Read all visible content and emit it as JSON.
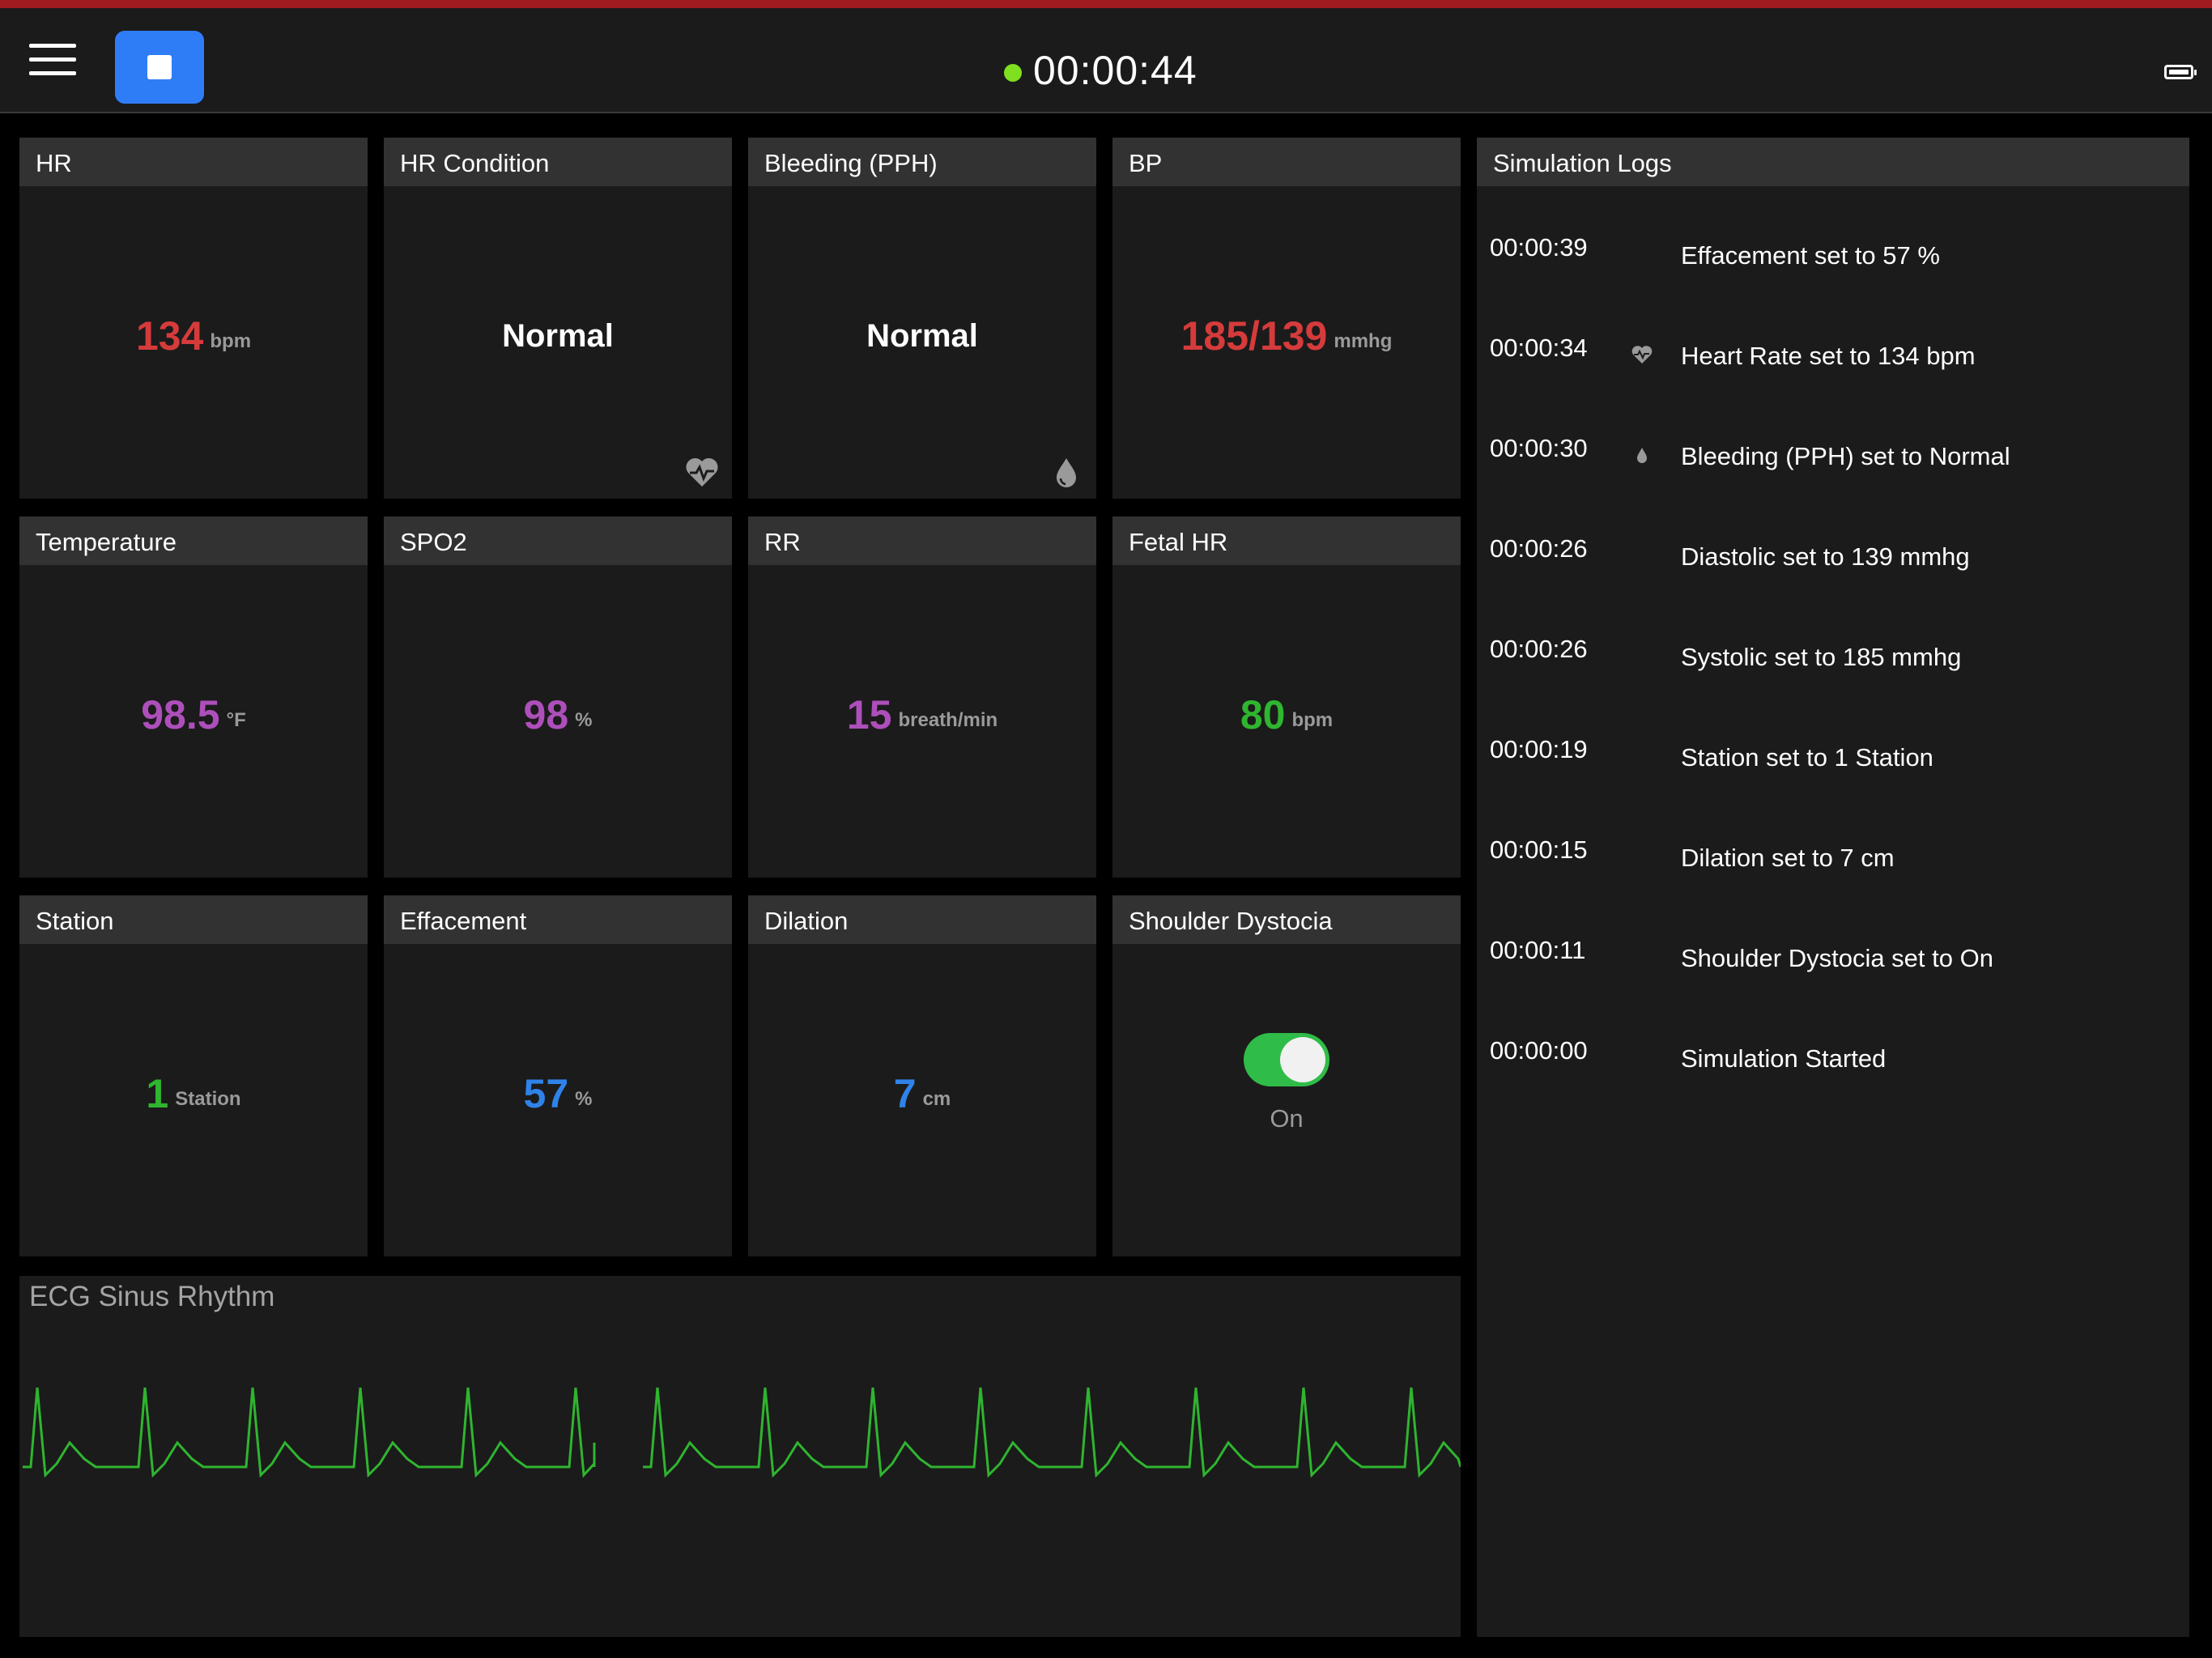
{
  "header": {
    "menu_icon": "hamburger-menu-icon",
    "stop_icon": "stop-icon",
    "status_dot_color": "#7ee01e",
    "timer": "00:00:44",
    "battery_icon": "battery-icon",
    "accent_bar_color": "#a01b20"
  },
  "cards": {
    "hr": {
      "title": "HR",
      "value": "134",
      "unit": "bpm",
      "color": "#d63b3b"
    },
    "hr_condition": {
      "title": "HR Condition",
      "value": "Normal",
      "icon": "heart-pulse-icon"
    },
    "bleeding": {
      "title": "Bleeding (PPH)",
      "value": "Normal",
      "icon": "blood-drop-icon"
    },
    "bp": {
      "title": "BP",
      "value": "185/139",
      "unit": "mmhg",
      "color": "#d63b3b"
    },
    "temperature": {
      "title": "Temperature",
      "value": "98.5",
      "unit": "°F",
      "color": "#ad4fba"
    },
    "spo2": {
      "title": "SPO2",
      "value": "98",
      "unit": "%",
      "color": "#ad4fba"
    },
    "rr": {
      "title": "RR",
      "value": "15",
      "unit": "breath/min",
      "color": "#ad4fba"
    },
    "fetal_hr": {
      "title": "Fetal HR",
      "value": "80",
      "unit": "bpm",
      "color": "#2fb52f"
    },
    "station": {
      "title": "Station",
      "value": "1",
      "unit": "Station",
      "color": "#2fb52f"
    },
    "effacement": {
      "title": "Effacement",
      "value": "57",
      "unit": "%",
      "color": "#2f83e8"
    },
    "dilation": {
      "title": "Dilation",
      "value": "7",
      "unit": "cm",
      "color": "#2f83e8"
    },
    "shoulder_dystocia": {
      "title": "Shoulder Dystocia",
      "toggle_on": true,
      "state_label": "On",
      "toggle_color": "#2fbc48"
    }
  },
  "ecg": {
    "title": "ECG Sinus Rhythm",
    "trace_color": "#2fb52f"
  },
  "logs": {
    "title": "Simulation Logs",
    "entries": [
      {
        "time": "00:00:39",
        "icon": "",
        "message": "Effacement set to 57 %"
      },
      {
        "time": "00:00:34",
        "icon": "heart-pulse-icon",
        "message": "Heart Rate set to 134 bpm"
      },
      {
        "time": "00:00:30",
        "icon": "blood-drop-icon",
        "message": "Bleeding (PPH) set to Normal"
      },
      {
        "time": "00:00:26",
        "icon": "",
        "message": "Diastolic set to 139 mmhg"
      },
      {
        "time": "00:00:26",
        "icon": "",
        "message": "Systolic set to 185 mmhg"
      },
      {
        "time": "00:00:19",
        "icon": "",
        "message": "Station set to 1 Station"
      },
      {
        "time": "00:00:15",
        "icon": "",
        "message": "Dilation set to 7 cm"
      },
      {
        "time": "00:00:11",
        "icon": "",
        "message": "Shoulder Dystocia set to On"
      },
      {
        "time": "00:00:00",
        "icon": "",
        "message": "Simulation Started"
      }
    ]
  }
}
